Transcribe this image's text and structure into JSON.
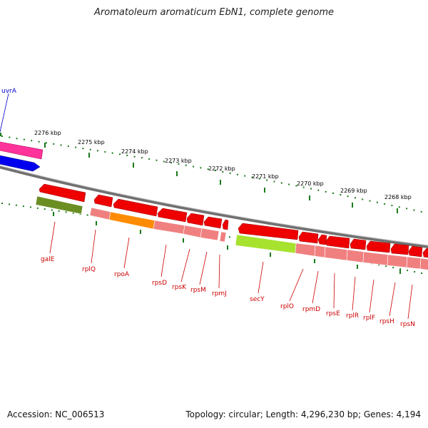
{
  "title": "Aromatoleum aromaticum EbN1, complete genome",
  "footer": {
    "accession": "Accession: NC_006513",
    "summary": "Topology: circular; Length: 4,296,230 bp; Genes: 4,194"
  },
  "ruler_labels": [
    "2276 kbp",
    "2275 kbp",
    "2274 kbp",
    "2273 kbp",
    "2272 kbp",
    "2271 kbp",
    "2270 kbp",
    "2269 kbp",
    "2268 kbp"
  ],
  "genes": [
    {
      "label": "uvrA",
      "color": "#0000cc"
    },
    {
      "label": "galE",
      "color": "#cc0000"
    },
    {
      "label": "rplQ",
      "color": "#cc0000"
    },
    {
      "label": "rpoA",
      "color": "#cc0000"
    },
    {
      "label": "rpsD",
      "color": "#cc0000"
    },
    {
      "label": "rpsK",
      "color": "#cc0000"
    },
    {
      "label": "rpsM",
      "color": "#cc0000"
    },
    {
      "label": "rpmJ",
      "color": "#cc0000"
    },
    {
      "label": "secY",
      "color": "#cc0000"
    },
    {
      "label": "rplO",
      "color": "#cc0000"
    },
    {
      "label": "rpmD",
      "color": "#cc0000"
    },
    {
      "label": "rpsE",
      "color": "#cc0000"
    },
    {
      "label": "rplR",
      "color": "#cc0000"
    },
    {
      "label": "rplF",
      "color": "#cc0000"
    },
    {
      "label": "rpsH",
      "color": "#cc0000"
    },
    {
      "label": "rpsN",
      "color": "#cc0000"
    }
  ],
  "colors": {
    "cds_red": "#ee0000",
    "cds_magenta": "#ff3399",
    "cds_blue": "#0000ee",
    "cog_pink": "#f08080",
    "cog_olive": "#6b8e23",
    "cog_orange": "#ff8c00",
    "cog_lime": "#a6e22e",
    "backbone": "#888888",
    "tick_green": "#1a7a1a"
  }
}
